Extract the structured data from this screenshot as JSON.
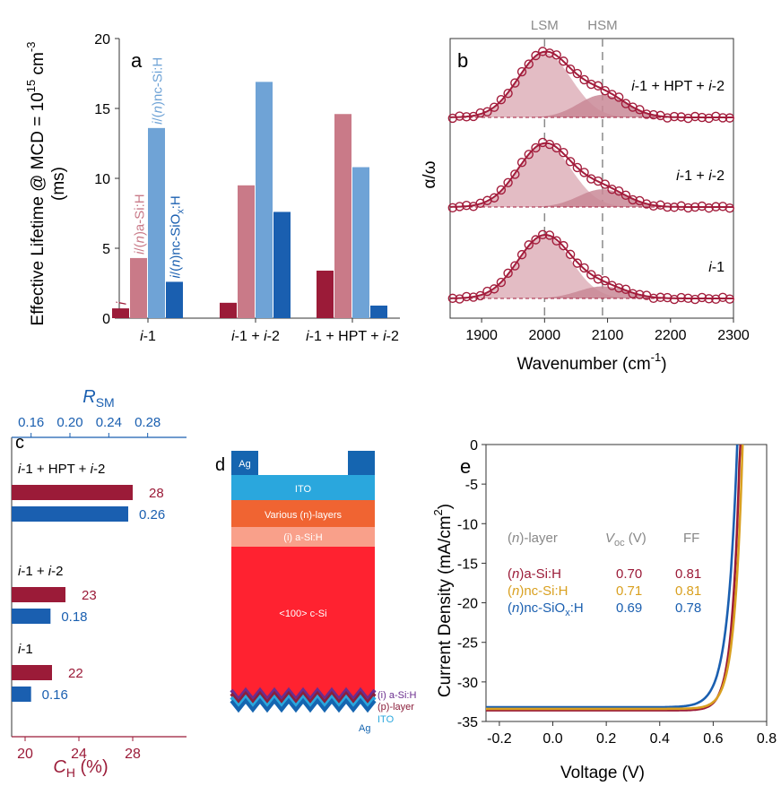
{
  "colors": {
    "a_i": "#9b1b38",
    "a_n_aSi": "#c97a88",
    "a_n_ncSi": "#6fa3d6",
    "a_n_ncSiOx": "#1a5fb0",
    "b_line": "#a31d3c",
    "b_fill_lsm": "#e3bcc4",
    "b_fill_hsm": "#c98897",
    "c_CH": "#9b1b38",
    "c_RSM": "#1a5fb0",
    "d_ag": "#1565b0",
    "d_ito": "#2aa7dd",
    "d_nlayers": "#f06432",
    "d_iaSi": "#f9a08a",
    "d_cSi": "#ff2230",
    "d_purple": "#6b2d8e",
    "d_maroon": "#8b1f3b",
    "e_aSi": "#9b1b38",
    "e_ncSi": "#d9a020",
    "e_ncSiOx": "#1a5fb0"
  },
  "chart_data": [
    {
      "panel": "a",
      "type": "bar",
      "ylabel_line1": "Effective Lifetime @ MCD = 10",
      "ylabel_sup": "15",
      "ylabel_unit": " cm",
      "ylabel_unit_sup": "-3",
      "ylabel_line2": "(ms)",
      "ylim": [
        0,
        20
      ],
      "yticks": [
        "0",
        "5",
        "10",
        "15",
        "20"
      ],
      "categories": [
        "i-1",
        "i-1 + i-2",
        "i-1 + HPT + i-2"
      ],
      "series": [
        {
          "name": "i",
          "values": [
            0.7,
            1.1,
            3.4
          ],
          "color_key": "a_i"
        },
        {
          "name": "i/(n)a-Si:H",
          "values": [
            4.3,
            9.5,
            14.6
          ],
          "color_key": "a_n_aSi"
        },
        {
          "name": "i/(n)nc-Si:H",
          "values": [
            13.6,
            16.9,
            10.8
          ],
          "color_key": "a_n_ncSi"
        },
        {
          "name": "i/(n)nc-SiOx:H",
          "values": [
            2.6,
            7.6,
            0.9
          ],
          "color_key": "a_n_ncSiOx"
        }
      ],
      "bar_label_i": "i",
      "bar_label_aSi": [
        "i",
        "/(",
        "n",
        ")a-Si:H"
      ],
      "bar_label_ncSi": [
        "i",
        "/(",
        "n",
        ")nc-Si:H"
      ],
      "bar_label_ncSiOx": [
        "i",
        "/(",
        "n",
        ")nc-SiO",
        "x",
        ":H"
      ]
    },
    {
      "panel": "b",
      "type": "line",
      "ylabel": "α/ω",
      "xlabel": "Wavenumber (cm",
      "xlabel_sup": "-1",
      "xlabel_close": ")",
      "xlim": [
        1850,
        2300
      ],
      "xticks": [
        "1900",
        "2000",
        "2100",
        "2200",
        "2300"
      ],
      "lsm_label": "LSM",
      "hsm_label": "HSM",
      "lsm_pos": 2000,
      "hsm_pos": 2092,
      "traces": [
        {
          "label": "i-1 + HPT + i-2",
          "lsm_amp": 0.8,
          "hsm_amp": 0.28
        },
        {
          "label": "i-1 + i-2",
          "lsm_amp": 0.78,
          "hsm_amp": 0.22
        },
        {
          "label": "i-1",
          "lsm_amp": 0.78,
          "hsm_amp": 0.15
        }
      ]
    },
    {
      "panel": "c",
      "type": "bar",
      "top_axis_label": "R",
      "top_axis_sub": "SM",
      "top_ticks": [
        "0.16",
        "0.20",
        "0.24",
        "0.28"
      ],
      "top_range": [
        0.14,
        0.32
      ],
      "bottom_axis_label": "C",
      "bottom_axis_sub": "H",
      "bottom_axis_unit": " (%)",
      "bottom_ticks": [
        "20",
        "24",
        "28"
      ],
      "bottom_range": [
        19,
        32
      ],
      "groups": [
        {
          "label": "i-1 + HPT + i-2",
          "CH": 28,
          "CH_text": "28",
          "RSM": 0.26,
          "RSM_text": "0.26"
        },
        {
          "label": "i-1 + i-2",
          "CH": 23,
          "CH_text": "23",
          "RSM": 0.18,
          "RSM_text": "0.18"
        },
        {
          "label": "i-1",
          "CH": 22,
          "CH_text": "22",
          "RSM": 0.16,
          "RSM_text": "0.16"
        }
      ]
    },
    {
      "panel": "e",
      "type": "line",
      "xlabel": "Voltage (V)",
      "ylabel": "Current Density (mA/cm",
      "ylabel_sup": "2",
      "ylabel_close": ")",
      "xlim": [
        -0.25,
        0.8
      ],
      "ylim": [
        -35,
        0
      ],
      "xticks": [
        "-0.2",
        "0.0",
        "0.2",
        "0.4",
        "0.6",
        "0.8"
      ],
      "yticks": [
        "0",
        "-5",
        "-10",
        "-15",
        "-20",
        "-25",
        "-30",
        "-35"
      ],
      "header_layer": "(n)-layer",
      "header_voc": "V",
      "header_voc_sub": "oc",
      "header_voc_unit": " (V)",
      "header_ff": "FF",
      "series": [
        {
          "name": "(n)a-Si:H",
          "Voc": 0.7,
          "Voc_text": "0.70",
          "FF_text": "0.81",
          "Jsc": -33.6,
          "color_key": "e_aSi",
          "n_ideal": 0.028
        },
        {
          "name": "(n)nc-Si:H",
          "Voc": 0.71,
          "Voc_text": "0.71",
          "FF_text": "0.81",
          "Jsc": -33.4,
          "color_key": "e_ncSi",
          "n_ideal": 0.03
        },
        {
          "name": "(n)nc-SiOx:H",
          "Voc": 0.69,
          "Voc_text": "0.69",
          "FF_text": "0.78",
          "Jsc": -33.2,
          "color_key": "e_ncSiOx",
          "n_ideal": 0.036
        }
      ]
    }
  ],
  "labels": {
    "panel_a": "a",
    "panel_b": "b",
    "panel_c": "c",
    "panel_d": "d",
    "panel_e": "e"
  },
  "stack": {
    "ag": "Ag",
    "ito": "ITO",
    "n_layers": "Various (n)-layers",
    "i_aSi": "(i) a-Si:H",
    "c_si": "<100> c-Si",
    "rear_i_aSi": "(i) a-Si:H",
    "rear_p": "(p)-layer",
    "rear_ito": "ITO",
    "rear_ag": "Ag"
  }
}
